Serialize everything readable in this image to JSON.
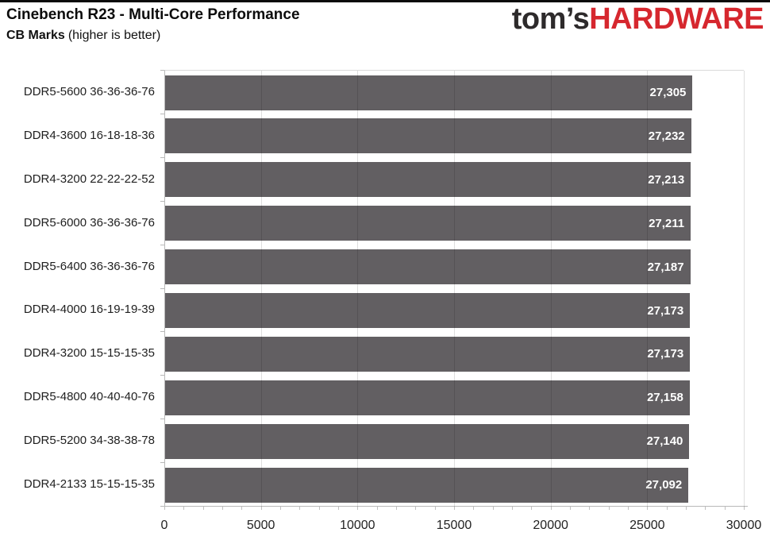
{
  "page": {
    "top_border_color": "#0b0b0b",
    "background": "#ffffff"
  },
  "header": {
    "title": "Cinebench R23 - Multi-Core Performance",
    "subtitle_bold": "CB Marks",
    "subtitle_note": "(higher is better)",
    "logo": {
      "prefix": "tom’s",
      "suffix": "HARDWARE",
      "prefix_color": "#2d2a2b",
      "suffix_color": "#d6272e"
    }
  },
  "chart_data": {
    "type": "bar",
    "orientation": "horizontal",
    "title": "Cinebench R23 - Multi-Core Performance",
    "ylabel": "",
    "xlabel": "",
    "categories": [
      "DDR5-5600 36-36-36-76",
      "DDR4-3600 16-18-18-36",
      "DDR4-3200 22-22-22-52",
      "DDR5-6000 36-36-36-76",
      "DDR5-6400 36-36-36-76",
      "DDR4-4000 16-19-19-39",
      "DDR4-3200 15-15-15-35",
      "DDR5-4800 40-40-40-76",
      "DDR5-5200 34-38-38-78",
      "DDR4-2133 15-15-15-35"
    ],
    "values": [
      27305,
      27232,
      27213,
      27211,
      27187,
      27173,
      27173,
      27158,
      27140,
      27092
    ],
    "value_labels": [
      "27,305",
      "27,232",
      "27,213",
      "27,211",
      "27,187",
      "27,173",
      "27,173",
      "27,158",
      "27,140",
      "27,092"
    ],
    "xlim": [
      0,
      30000
    ],
    "xticks": [
      0,
      5000,
      10000,
      15000,
      20000,
      25000,
      30000
    ],
    "xtick_labels": [
      "0",
      "5000",
      "10000",
      "15000",
      "20000",
      "25000",
      "30000"
    ],
    "minor_tick_step": 1000,
    "grid": "vertical-major",
    "legend": "none",
    "bar_color": "#625f62",
    "value_label_color": "#ffffff",
    "gridline_color": "rgba(0,0,0,0.13)",
    "axis_color": "#b9b9b9"
  }
}
